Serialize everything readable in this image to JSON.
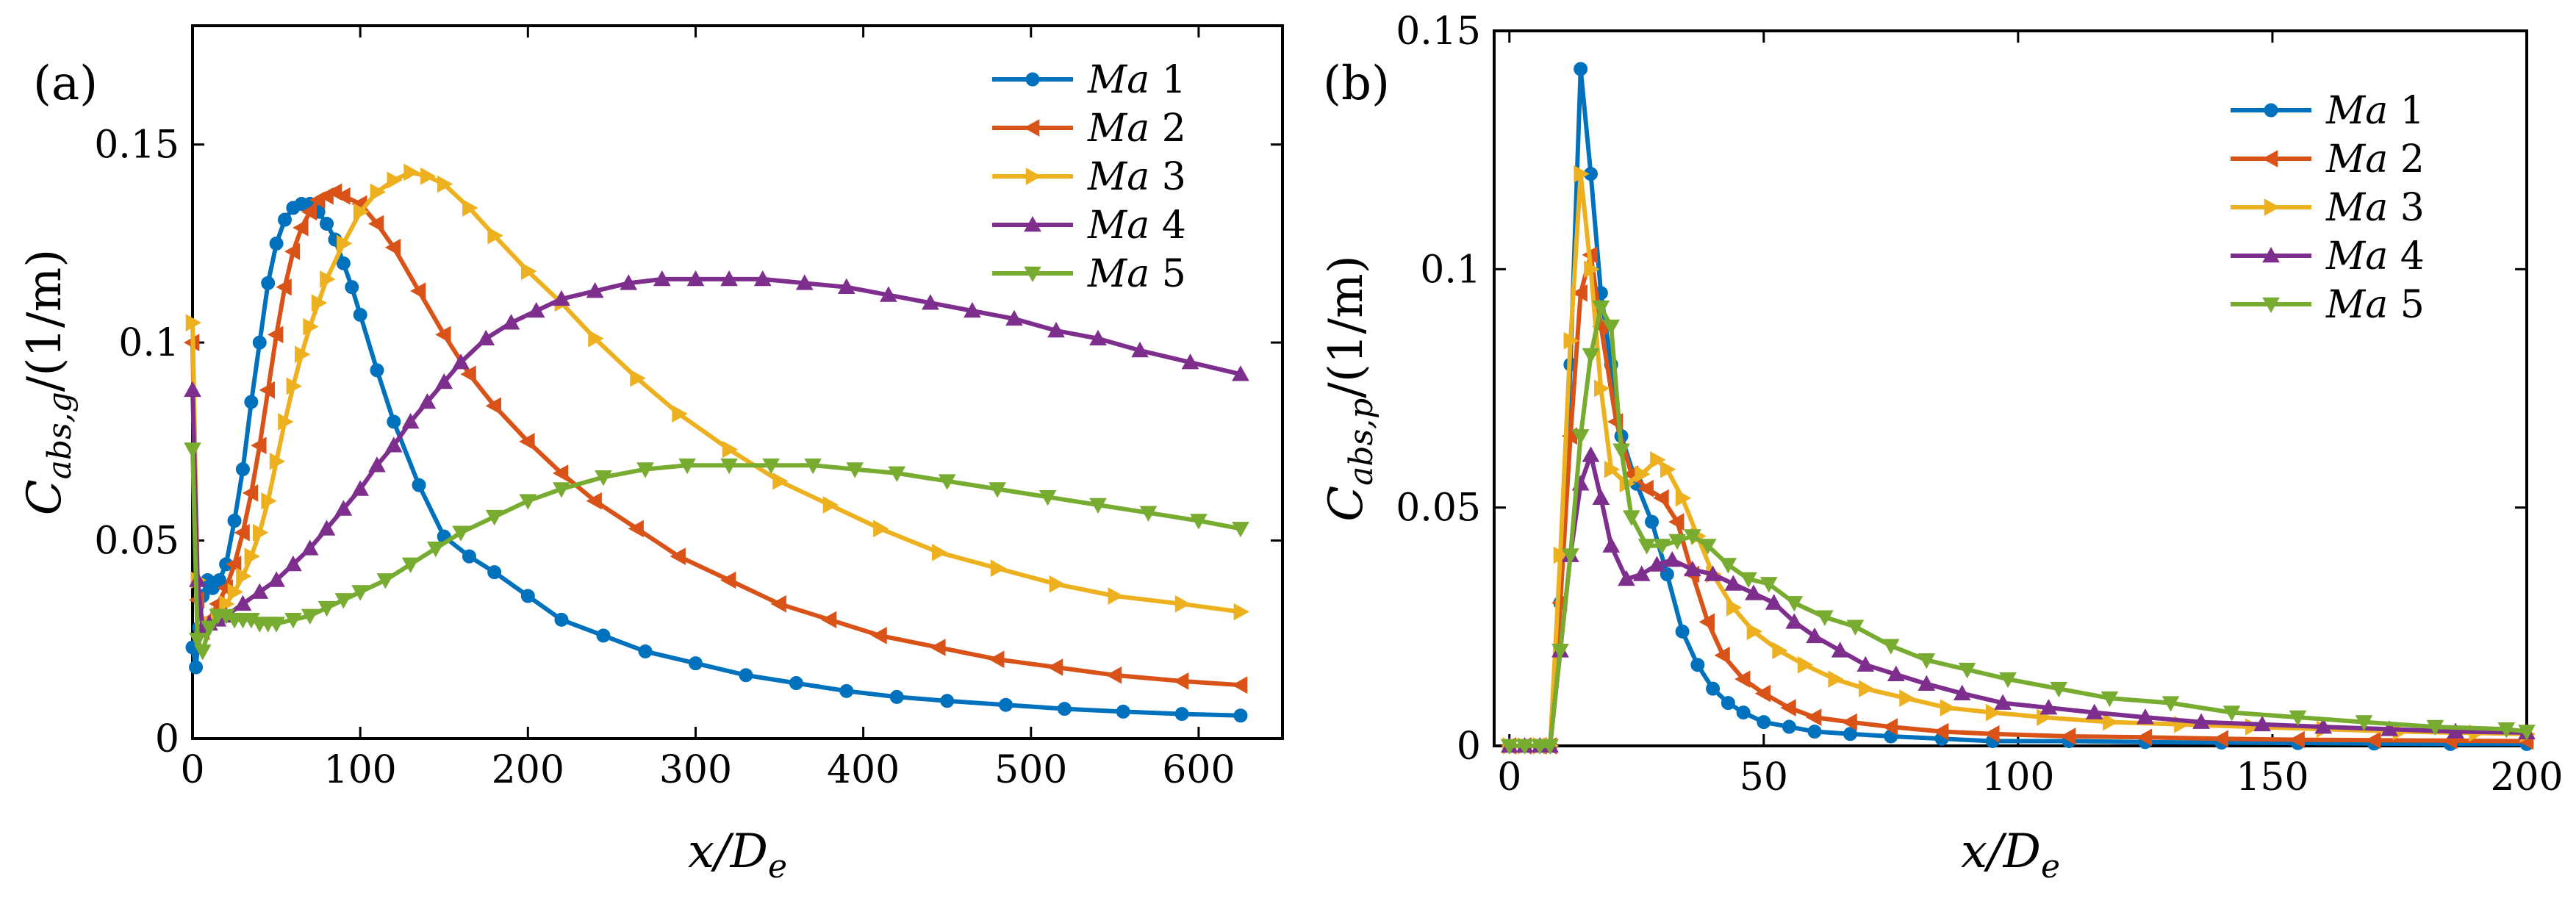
{
  "chart_data": [
    {
      "type": "line",
      "panel_label": "(a)",
      "xlabel": {
        "prefix": "x/D",
        "sub": "e",
        "suffix": ""
      },
      "ylabel": {
        "prefix": "C",
        "sub": "abs,g",
        "suffix": "/(1/m)"
      },
      "xlim": [
        0,
        650
      ],
      "ylim": [
        0,
        0.18
      ],
      "xticks": [
        0,
        100,
        200,
        300,
        400,
        500,
        600
      ],
      "xtick_labels": [
        "0",
        "100",
        "200",
        "300",
        "400",
        "500",
        "600"
      ],
      "yticks": [
        0,
        0.05,
        0.1,
        0.15
      ],
      "ytick_labels": [
        "0",
        "0.05",
        "0.1",
        "0.15"
      ],
      "legend_position": "top-right",
      "series": [
        {
          "name": "Ma 1",
          "label_italic": "Ma",
          "label_num": "1",
          "color": "#0072BD",
          "marker": "circle",
          "x": [
            0,
            2,
            4,
            6,
            9,
            12,
            16,
            20,
            25,
            30,
            35,
            40,
            45,
            50,
            55,
            60,
            65,
            70,
            75,
            80,
            85,
            90,
            95,
            100,
            110,
            120,
            135,
            150,
            165,
            180,
            200,
            220,
            245,
            270,
            300,
            330,
            360,
            390,
            420,
            450,
            485,
            520,
            555,
            590,
            625
          ],
          "y": [
            0.023,
            0.018,
            0.028,
            0.036,
            0.04,
            0.038,
            0.04,
            0.044,
            0.055,
            0.068,
            0.085,
            0.1,
            0.115,
            0.125,
            0.131,
            0.134,
            0.135,
            0.135,
            0.133,
            0.13,
            0.126,
            0.12,
            0.114,
            0.107,
            0.093,
            0.08,
            0.064,
            0.051,
            0.046,
            0.042,
            0.036,
            0.03,
            0.026,
            0.022,
            0.019,
            0.016,
            0.014,
            0.012,
            0.0105,
            0.0095,
            0.0085,
            0.0075,
            0.0068,
            0.0062,
            0.0058
          ]
        },
        {
          "name": "Ma 2",
          "label_italic": "Ma",
          "label_num": "2",
          "color": "#D95319",
          "marker": "triangle-left",
          "x": [
            0,
            3,
            6,
            10,
            15,
            20,
            25,
            30,
            35,
            40,
            45,
            50,
            55,
            60,
            65,
            70,
            75,
            80,
            85,
            90,
            100,
            110,
            120,
            135,
            150,
            165,
            180,
            200,
            220,
            240,
            265,
            290,
            320,
            350,
            380,
            410,
            445,
            480,
            515,
            550,
            590,
            625
          ],
          "y": [
            0.1,
            0.035,
            0.027,
            0.03,
            0.034,
            0.038,
            0.044,
            0.052,
            0.062,
            0.074,
            0.088,
            0.102,
            0.114,
            0.123,
            0.129,
            0.133,
            0.136,
            0.137,
            0.138,
            0.137,
            0.135,
            0.13,
            0.124,
            0.113,
            0.102,
            0.092,
            0.084,
            0.075,
            0.067,
            0.06,
            0.053,
            0.046,
            0.04,
            0.034,
            0.03,
            0.026,
            0.023,
            0.02,
            0.018,
            0.016,
            0.0145,
            0.0135
          ]
        },
        {
          "name": "Ma 3",
          "label_italic": "Ma",
          "label_num": "3",
          "color": "#EDB120",
          "marker": "triangle-right",
          "x": [
            0,
            3,
            6,
            10,
            15,
            20,
            25,
            30,
            35,
            40,
            45,
            50,
            55,
            60,
            65,
            70,
            75,
            80,
            90,
            100,
            110,
            120,
            130,
            140,
            150,
            165,
            180,
            200,
            220,
            240,
            265,
            290,
            320,
            350,
            380,
            410,
            445,
            480,
            515,
            550,
            590,
            625
          ],
          "y": [
            0.105,
            0.04,
            0.028,
            0.029,
            0.031,
            0.034,
            0.037,
            0.041,
            0.046,
            0.052,
            0.06,
            0.07,
            0.08,
            0.089,
            0.097,
            0.104,
            0.11,
            0.116,
            0.125,
            0.133,
            0.138,
            0.141,
            0.143,
            0.142,
            0.14,
            0.134,
            0.127,
            0.118,
            0.11,
            0.101,
            0.091,
            0.082,
            0.073,
            0.065,
            0.059,
            0.053,
            0.047,
            0.043,
            0.039,
            0.036,
            0.034,
            0.032
          ]
        },
        {
          "name": "Ma 4",
          "label_italic": "Ma",
          "label_num": "4",
          "color": "#7E2F8E",
          "marker": "triangle-up",
          "x": [
            0,
            3,
            6,
            10,
            15,
            20,
            30,
            40,
            50,
            60,
            70,
            80,
            90,
            100,
            110,
            120,
            130,
            140,
            150,
            160,
            175,
            190,
            205,
            220,
            240,
            260,
            280,
            300,
            320,
            340,
            365,
            390,
            415,
            440,
            465,
            490,
            515,
            540,
            565,
            595,
            625
          ],
          "y": [
            0.088,
            0.04,
            0.028,
            0.029,
            0.03,
            0.031,
            0.034,
            0.037,
            0.04,
            0.044,
            0.048,
            0.053,
            0.058,
            0.063,
            0.069,
            0.074,
            0.08,
            0.085,
            0.09,
            0.095,
            0.101,
            0.105,
            0.108,
            0.111,
            0.113,
            0.115,
            0.116,
            0.116,
            0.116,
            0.116,
            0.115,
            0.114,
            0.112,
            0.11,
            0.108,
            0.106,
            0.103,
            0.101,
            0.098,
            0.095,
            0.092
          ]
        },
        {
          "name": "Ma 5",
          "label_italic": "Ma",
          "label_num": "5",
          "color": "#77AC30",
          "marker": "triangle-down",
          "x": [
            0,
            3,
            6,
            10,
            15,
            20,
            25,
            30,
            35,
            40,
            45,
            50,
            60,
            70,
            80,
            90,
            100,
            115,
            130,
            145,
            160,
            180,
            200,
            220,
            245,
            270,
            295,
            320,
            345,
            370,
            395,
            420,
            450,
            480,
            510,
            540,
            570,
            600,
            625
          ],
          "y": [
            0.073,
            0.025,
            0.022,
            0.028,
            0.031,
            0.031,
            0.03,
            0.03,
            0.03,
            0.029,
            0.029,
            0.029,
            0.03,
            0.031,
            0.033,
            0.035,
            0.037,
            0.04,
            0.044,
            0.048,
            0.052,
            0.056,
            0.06,
            0.063,
            0.066,
            0.068,
            0.069,
            0.069,
            0.069,
            0.069,
            0.068,
            0.067,
            0.065,
            0.063,
            0.061,
            0.059,
            0.057,
            0.055,
            0.053
          ]
        }
      ]
    },
    {
      "type": "line",
      "panel_label": "(b)",
      "xlabel": {
        "prefix": "x/D",
        "sub": "e",
        "suffix": ""
      },
      "ylabel": {
        "prefix": "C",
        "sub": "abs,p",
        "suffix": "/(1/m)"
      },
      "xlim": [
        -3,
        200
      ],
      "ylim": [
        0,
        0.15
      ],
      "xticks": [
        0,
        50,
        100,
        150,
        200
      ],
      "xtick_labels": [
        "0",
        "50",
        "100",
        "150",
        "200"
      ],
      "yticks": [
        0,
        0.05,
        0.1,
        0.15
      ],
      "ytick_labels": [
        "0",
        "0.05",
        "0.1",
        "0.15"
      ],
      "legend_position": "top-right",
      "series": [
        {
          "name": "Ma 1",
          "label_italic": "Ma",
          "label_num": "1",
          "color": "#0072BD",
          "marker": "circle",
          "x": [
            0,
            3,
            6,
            8,
            10,
            12,
            14,
            16,
            18,
            20,
            22,
            25,
            28,
            31,
            34,
            37,
            40,
            43,
            46,
            50,
            55,
            60,
            67,
            75,
            85,
            95,
            110,
            125,
            140,
            155,
            170,
            185,
            200
          ],
          "y": [
            0,
            0,
            0,
            0,
            0.03,
            0.08,
            0.142,
            0.12,
            0.095,
            0.08,
            0.065,
            0.055,
            0.047,
            0.036,
            0.024,
            0.017,
            0.012,
            0.009,
            0.007,
            0.005,
            0.004,
            0.003,
            0.0025,
            0.002,
            0.0015,
            0.001,
            0.001,
            0.0008,
            0.0007,
            0.0006,
            0.0005,
            0.0004,
            0.0004
          ]
        },
        {
          "name": "Ma 2",
          "label_italic": "Ma",
          "label_num": "2",
          "color": "#D95319",
          "marker": "triangle-left",
          "x": [
            0,
            3,
            6,
            8,
            10,
            12,
            14,
            16,
            18,
            21,
            24,
            27,
            30,
            33,
            36,
            39,
            42,
            46,
            50,
            55,
            60,
            67,
            75,
            85,
            95,
            110,
            125,
            140,
            155,
            170,
            185,
            200
          ],
          "y": [
            0,
            0,
            0,
            0,
            0.03,
            0.065,
            0.095,
            0.103,
            0.088,
            0.068,
            0.057,
            0.054,
            0.052,
            0.047,
            0.036,
            0.026,
            0.019,
            0.014,
            0.011,
            0.008,
            0.006,
            0.005,
            0.004,
            0.003,
            0.0025,
            0.002,
            0.0018,
            0.0015,
            0.0013,
            0.0012,
            0.0011,
            0.001
          ]
        },
        {
          "name": "Ma 3",
          "label_italic": "Ma",
          "label_num": "3",
          "color": "#EDB120",
          "marker": "triangle-right",
          "x": [
            0,
            3,
            6,
            8,
            10,
            12,
            14,
            16,
            18,
            20,
            23,
            26,
            29,
            31,
            34,
            37,
            40,
            44,
            48,
            53,
            58,
            64,
            70,
            78,
            86,
            95,
            105,
            118,
            132,
            146,
            160,
            175,
            190,
            200
          ],
          "y": [
            0,
            0,
            0,
            0,
            0.04,
            0.085,
            0.12,
            0.1,
            0.075,
            0.058,
            0.055,
            0.057,
            0.06,
            0.058,
            0.052,
            0.044,
            0.036,
            0.029,
            0.024,
            0.02,
            0.017,
            0.014,
            0.012,
            0.01,
            0.008,
            0.007,
            0.006,
            0.005,
            0.0045,
            0.004,
            0.0035,
            0.003,
            0.0027,
            0.0025
          ]
        },
        {
          "name": "Ma 4",
          "label_italic": "Ma",
          "label_num": "4",
          "color": "#7E2F8E",
          "marker": "triangle-up",
          "x": [
            0,
            3,
            6,
            8,
            10,
            12,
            14,
            16,
            18,
            20,
            23,
            26,
            29,
            32,
            36,
            40,
            44,
            48,
            52,
            56,
            60,
            65,
            70,
            76,
            82,
            89,
            97,
            106,
            115,
            125,
            136,
            148,
            160,
            173,
            186,
            200
          ],
          "y": [
            0,
            0,
            0,
            0,
            0.02,
            0.04,
            0.055,
            0.061,
            0.052,
            0.042,
            0.035,
            0.036,
            0.038,
            0.039,
            0.037,
            0.036,
            0.034,
            0.032,
            0.03,
            0.026,
            0.023,
            0.02,
            0.017,
            0.015,
            0.013,
            0.011,
            0.009,
            0.008,
            0.007,
            0.006,
            0.005,
            0.0045,
            0.004,
            0.0035,
            0.003,
            0.0028
          ]
        },
        {
          "name": "Ma 5",
          "label_italic": "Ma",
          "label_num": "5",
          "color": "#77AC30",
          "marker": "triangle-down",
          "x": [
            0,
            3,
            6,
            8,
            10,
            12,
            14,
            16,
            18,
            20,
            22,
            24,
            27,
            30,
            33,
            36,
            39,
            43,
            47,
            51,
            56,
            62,
            68,
            75,
            82,
            90,
            98,
            108,
            118,
            130,
            142,
            155,
            168,
            182,
            196,
            200
          ],
          "y": [
            0,
            0,
            0,
            0,
            0.02,
            0.04,
            0.065,
            0.082,
            0.092,
            0.088,
            0.062,
            0.048,
            0.042,
            0.042,
            0.043,
            0.044,
            0.042,
            0.038,
            0.035,
            0.034,
            0.03,
            0.027,
            0.025,
            0.021,
            0.018,
            0.016,
            0.014,
            0.012,
            0.01,
            0.009,
            0.007,
            0.006,
            0.005,
            0.004,
            0.0035,
            0.003
          ]
        }
      ]
    }
  ]
}
